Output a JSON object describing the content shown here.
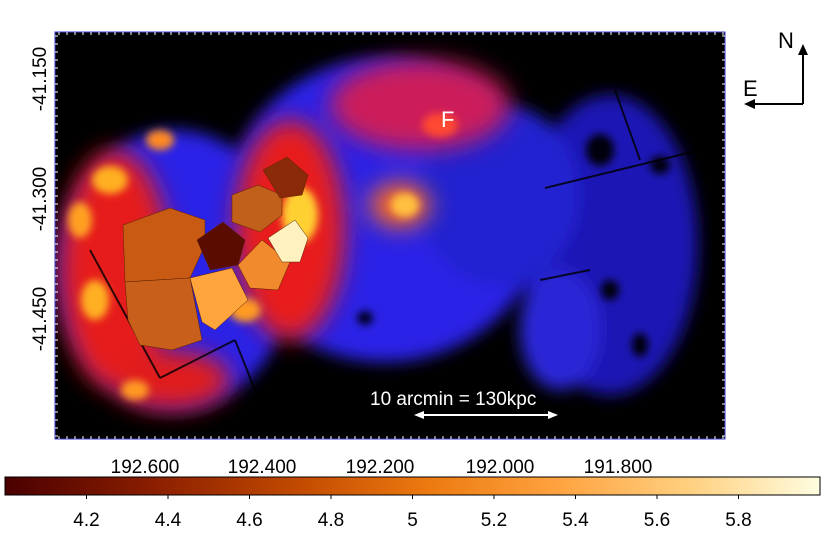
{
  "image": {
    "description_free": true,
    "ra_ticks": [
      "192.600",
      "192.400",
      "192.200",
      "192.000",
      "191.800"
    ],
    "dec_ticks": [
      "-41.150",
      "-41.300",
      "-41.450"
    ],
    "compass": {
      "north": "N",
      "east": "E"
    },
    "region_label": "F",
    "scale_bar_label": "10 arcmin = 130kpc",
    "colorbar": {
      "ticks": [
        "4.2",
        "4.4",
        "4.6",
        "4.8",
        "5",
        "5.2",
        "5.4",
        "5.6",
        "5.8"
      ],
      "min": 4.0,
      "max": 6.0,
      "colors": [
        "#4a0000",
        "#8a1e00",
        "#c24a00",
        "#ec7a10",
        "#ffa340",
        "#ffd080",
        "#fffde0"
      ]
    }
  }
}
